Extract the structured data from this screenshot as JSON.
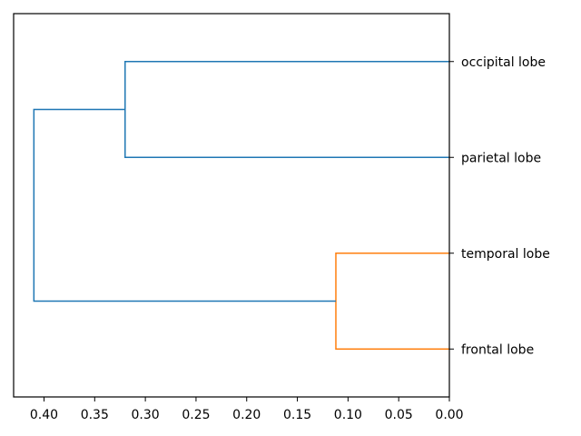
{
  "chart_data": {
    "type": "dendrogram",
    "orientation": "left",
    "xlabel": "",
    "ylabel": "",
    "xlim": [
      0.43,
      0.0
    ],
    "xticks": [
      {
        "value": 0.4,
        "label": "0.40"
      },
      {
        "value": 0.35,
        "label": "0.35"
      },
      {
        "value": 0.3,
        "label": "0.30"
      },
      {
        "value": 0.25,
        "label": "0.25"
      },
      {
        "value": 0.2,
        "label": "0.20"
      },
      {
        "value": 0.15,
        "label": "0.15"
      },
      {
        "value": 0.1,
        "label": "0.10"
      },
      {
        "value": 0.05,
        "label": "0.05"
      },
      {
        "value": 0.0,
        "label": "0.00"
      }
    ],
    "leaves": [
      "occipital lobe",
      "parietal lobe",
      "temporal lobe",
      "frontal lobe"
    ],
    "merges": [
      {
        "name": "frontal-temporal",
        "children": [
          "temporal lobe",
          "frontal lobe"
        ],
        "height": 0.112,
        "color": "#ff7f0e"
      },
      {
        "name": "parietal-occipital",
        "children": [
          "occipital lobe",
          "parietal lobe"
        ],
        "height": 0.32,
        "color": "#1f77b4"
      },
      {
        "name": "root",
        "children": [
          "parietal-occipital",
          "frontal-temporal"
        ],
        "height": 0.41,
        "color": "#1f77b4"
      }
    ],
    "colors": {
      "cluster": "#ff7f0e",
      "above_threshold": "#1f77b4"
    }
  }
}
